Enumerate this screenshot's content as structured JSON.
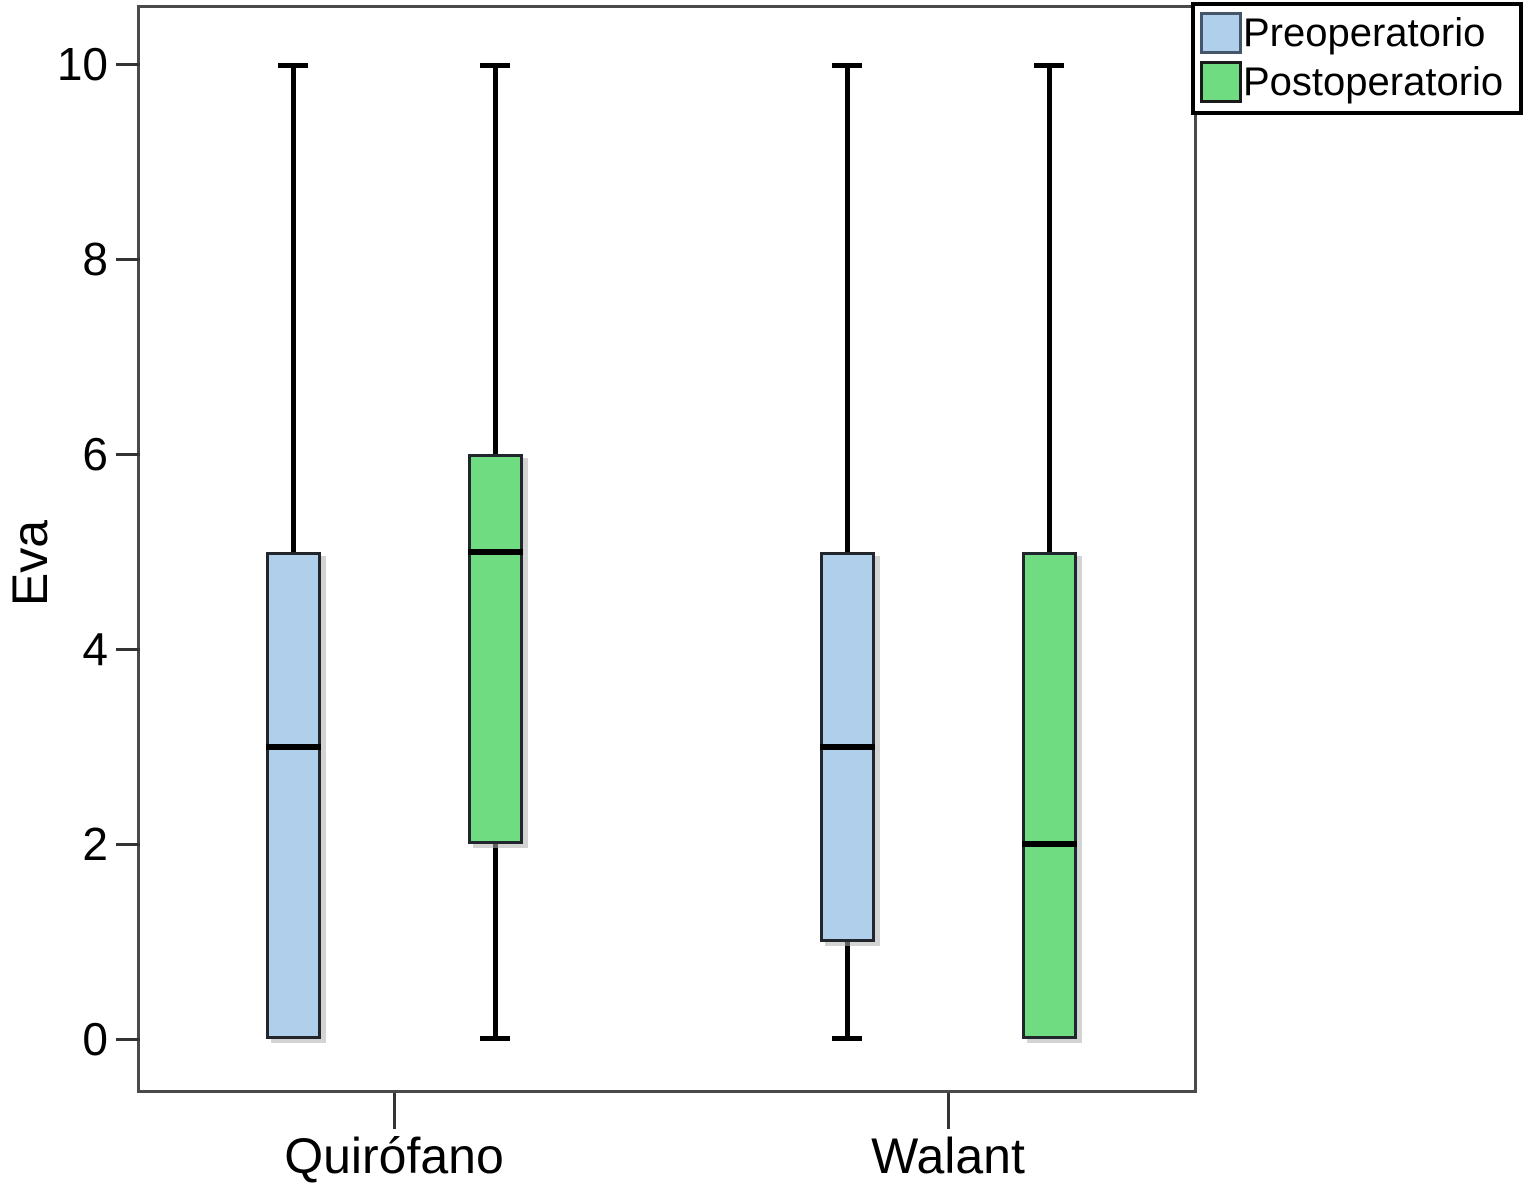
{
  "figure": {
    "background": "#ffffff"
  },
  "chart_data": {
    "type": "boxplot",
    "title": "",
    "ylabel": "Eva",
    "xlabel": "",
    "ylim": [
      0,
      10
    ],
    "yticks": [
      0,
      2,
      4,
      6,
      8,
      10
    ],
    "categories": [
      "Quirófano",
      "Walant"
    ],
    "grid": false,
    "legend_position": "top-right",
    "series": [
      {
        "name": "Preoperatorio",
        "color": "#AFCFEA",
        "swatch_border": "#44566a",
        "boxes": [
          {
            "category": "Quirófano",
            "whisker_min": 0,
            "q1": 0,
            "median": 3,
            "q3": 5,
            "whisker_max": 10
          },
          {
            "category": "Walant",
            "whisker_min": 0,
            "q1": 1,
            "median": 3,
            "q3": 5,
            "whisker_max": 10
          }
        ]
      },
      {
        "name": "Postoperatorio",
        "color": "#70DC82",
        "swatch_border": "#1a1a1a",
        "boxes": [
          {
            "category": "Quirófano",
            "whisker_min": 0,
            "q1": 2,
            "median": 5,
            "q3": 6,
            "whisker_max": 10
          },
          {
            "category": "Walant",
            "whisker_min": 0,
            "q1": 0,
            "median": 2,
            "q3": 5,
            "whisker_max": 10
          }
        ]
      }
    ]
  }
}
